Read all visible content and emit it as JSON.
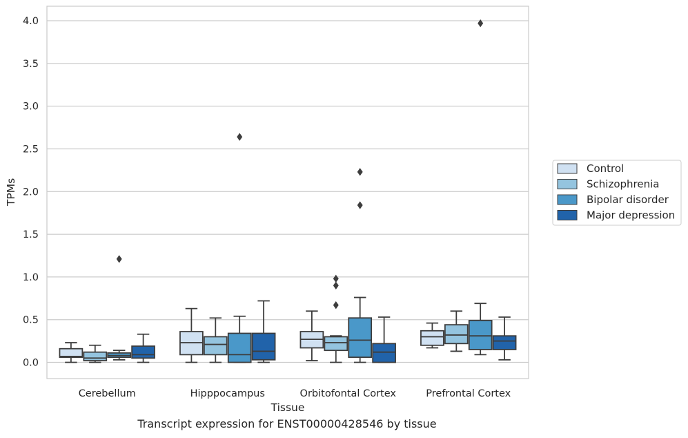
{
  "caption": "Transcript expression for ENST00000428546 by tissue",
  "chart_data": {
    "type": "box",
    "xlabel": "Tissue",
    "ylabel": "TPMs",
    "categories": [
      "Cerebellum",
      "Hipppocampus",
      "Orbitofontal Cortex",
      "Prefrontal Cortex"
    ],
    "ylim": [
      -0.19,
      4.17
    ],
    "yticks": [
      0.0,
      0.5,
      1.0,
      1.5,
      2.0,
      2.5,
      3.0,
      3.5,
      4.0
    ],
    "ytick_labels": [
      "0.0",
      "0.5",
      "1.0",
      "1.5",
      "2.0",
      "2.5",
      "3.0",
      "3.5",
      "4.0"
    ],
    "grid": "horizontal",
    "legend_position": "right",
    "series": [
      {
        "name": "Control",
        "color": "#d0e1f2",
        "boxes": [
          {
            "whisker_low": 0.0,
            "q1": 0.06,
            "median": 0.07,
            "q3": 0.16,
            "whisker_high": 0.23,
            "outliers": []
          },
          {
            "whisker_low": 0.0,
            "q1": 0.09,
            "median": 0.23,
            "q3": 0.36,
            "whisker_high": 0.63,
            "outliers": []
          },
          {
            "whisker_low": 0.02,
            "q1": 0.17,
            "median": 0.27,
            "q3": 0.36,
            "whisker_high": 0.6,
            "outliers": []
          },
          {
            "whisker_low": 0.17,
            "q1": 0.2,
            "median": 0.3,
            "q3": 0.37,
            "whisker_high": 0.46,
            "outliers": []
          }
        ]
      },
      {
        "name": "Schizophrenia",
        "color": "#94c4df",
        "boxes": [
          {
            "whisker_low": 0.0,
            "q1": 0.02,
            "median": 0.05,
            "q3": 0.12,
            "whisker_high": 0.2,
            "outliers": []
          },
          {
            "whisker_low": 0.0,
            "q1": 0.09,
            "median": 0.21,
            "q3": 0.3,
            "whisker_high": 0.52,
            "outliers": []
          },
          {
            "whisker_low": 0.0,
            "q1": 0.14,
            "median": 0.23,
            "q3": 0.3,
            "whisker_high": 0.31,
            "outliers": [
              0.67,
              0.9,
              0.98
            ]
          },
          {
            "whisker_low": 0.13,
            "q1": 0.22,
            "median": 0.32,
            "q3": 0.44,
            "whisker_high": 0.6,
            "outliers": []
          }
        ]
      },
      {
        "name": "Bipolar disorder",
        "color": "#4a98c9",
        "boxes": [
          {
            "whisker_low": 0.03,
            "q1": 0.06,
            "median": 0.08,
            "q3": 0.11,
            "whisker_high": 0.14,
            "outliers": [
              1.21
            ]
          },
          {
            "whisker_low": 0.0,
            "q1": 0.0,
            "median": 0.09,
            "q3": 0.34,
            "whisker_high": 0.54,
            "outliers": [
              2.64
            ]
          },
          {
            "whisker_low": 0.0,
            "q1": 0.06,
            "median": 0.26,
            "q3": 0.52,
            "whisker_high": 0.76,
            "outliers": [
              1.84,
              2.23
            ]
          },
          {
            "whisker_low": 0.09,
            "q1": 0.15,
            "median": 0.31,
            "q3": 0.49,
            "whisker_high": 0.69,
            "outliers": [
              3.97
            ]
          }
        ]
      },
      {
        "name": "Major depression",
        "color": "#2163aa",
        "boxes": [
          {
            "whisker_low": 0.0,
            "q1": 0.05,
            "median": 0.09,
            "q3": 0.19,
            "whisker_high": 0.33,
            "outliers": []
          },
          {
            "whisker_low": 0.0,
            "q1": 0.03,
            "median": 0.13,
            "q3": 0.34,
            "whisker_high": 0.72,
            "outliers": []
          },
          {
            "whisker_low": 0.0,
            "q1": 0.0,
            "median": 0.12,
            "q3": 0.22,
            "whisker_high": 0.53,
            "outliers": []
          },
          {
            "whisker_low": 0.03,
            "q1": 0.15,
            "median": 0.25,
            "q3": 0.31,
            "whisker_high": 0.53,
            "outliers": []
          }
        ]
      }
    ]
  }
}
